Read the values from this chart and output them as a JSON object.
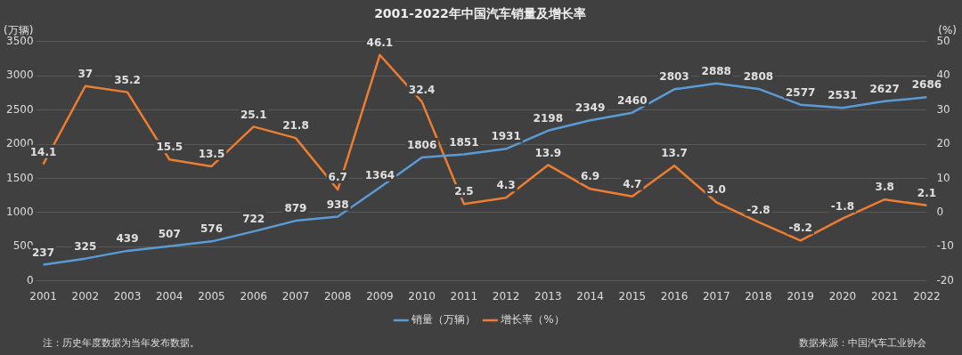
{
  "chart_data": {
    "type": "line",
    "title": "2001-2022年中国汽车销量及增长率",
    "categories": [
      "2001",
      "2002",
      "2003",
      "2004",
      "2005",
      "2006",
      "2007",
      "2008",
      "2009",
      "2010",
      "2011",
      "2012",
      "2013",
      "2014",
      "2015",
      "2016",
      "2017",
      "2018",
      "2019",
      "2020",
      "2021",
      "2022"
    ],
    "ylabel": "(万辆)",
    "y2label": "(%)",
    "series": [
      {
        "name": "销量（万辆）",
        "color": "#5b9bd5",
        "values": [
          237,
          325,
          439,
          507,
          576,
          722,
          879,
          938,
          1364,
          1806,
          1851,
          1931,
          2198,
          2349,
          2460,
          2803,
          2888,
          2808,
          2577,
          2531,
          2627,
          2686
        ],
        "value_labels": [
          "237",
          "325",
          "439",
          "507",
          "576",
          "722",
          "879",
          "938",
          "1364",
          "1806",
          "1851",
          "1931",
          "2198",
          "2349",
          "2460",
          "2803",
          "2888",
          "2808",
          "2577",
          "2531",
          "2627",
          "2686"
        ]
      },
      {
        "name": "增长率（%）",
        "color": "#ed7d31",
        "axis": "y2",
        "values": [
          14.1,
          37,
          35.2,
          15.5,
          13.5,
          25.1,
          21.8,
          6.7,
          46.1,
          32.4,
          2.5,
          4.3,
          13.9,
          6.9,
          4.7,
          13.7,
          3.0,
          -2.8,
          -8.2,
          -1.8,
          3.8,
          2.1
        ],
        "value_labels": [
          "14.1",
          "37",
          "35.2",
          "15.5",
          "13.5",
          "25.1",
          "21.8",
          "6.7",
          "46.1",
          "32.4",
          "2.5",
          "4.3",
          "13.9",
          "6.9",
          "4.7",
          "13.7",
          "3.0",
          "-2.8",
          "-8.2",
          "-1.8",
          "3.8",
          "2.1"
        ]
      }
    ],
    "ylim": [
      0,
      3500
    ],
    "yticks": [
      0,
      500,
      1000,
      1500,
      2000,
      2500,
      3000,
      3500
    ],
    "y2lim": [
      -20,
      50
    ],
    "y2ticks": [
      -20,
      -10,
      0,
      10,
      20,
      30,
      40,
      50
    ],
    "grid": "y",
    "legend": "bottom",
    "marker": "none",
    "line_style": "solid",
    "annotations": [
      "注：历史年度数据为当年发布数据。",
      "数据来源：中国汽车工业协会"
    ]
  }
}
